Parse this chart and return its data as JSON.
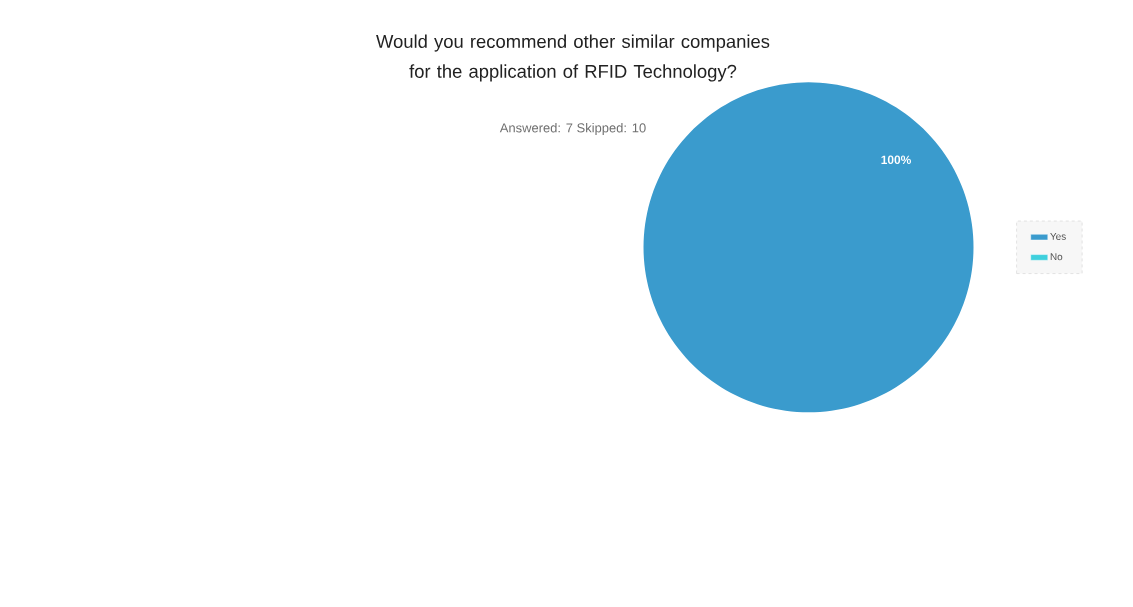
{
  "chart_data": {
    "type": "pie",
    "title": "Would you recommend other similar companies for the application of RFID Technology?",
    "subtitle": "Answered: 7 Skipped: 10",
    "categories": [
      "Yes",
      "No"
    ],
    "values": [
      100,
      0
    ],
    "colors": [
      "#3a9bcd",
      "#3fd0dd"
    ],
    "value_labels": [
      "100%",
      null
    ],
    "legend": "right"
  }
}
